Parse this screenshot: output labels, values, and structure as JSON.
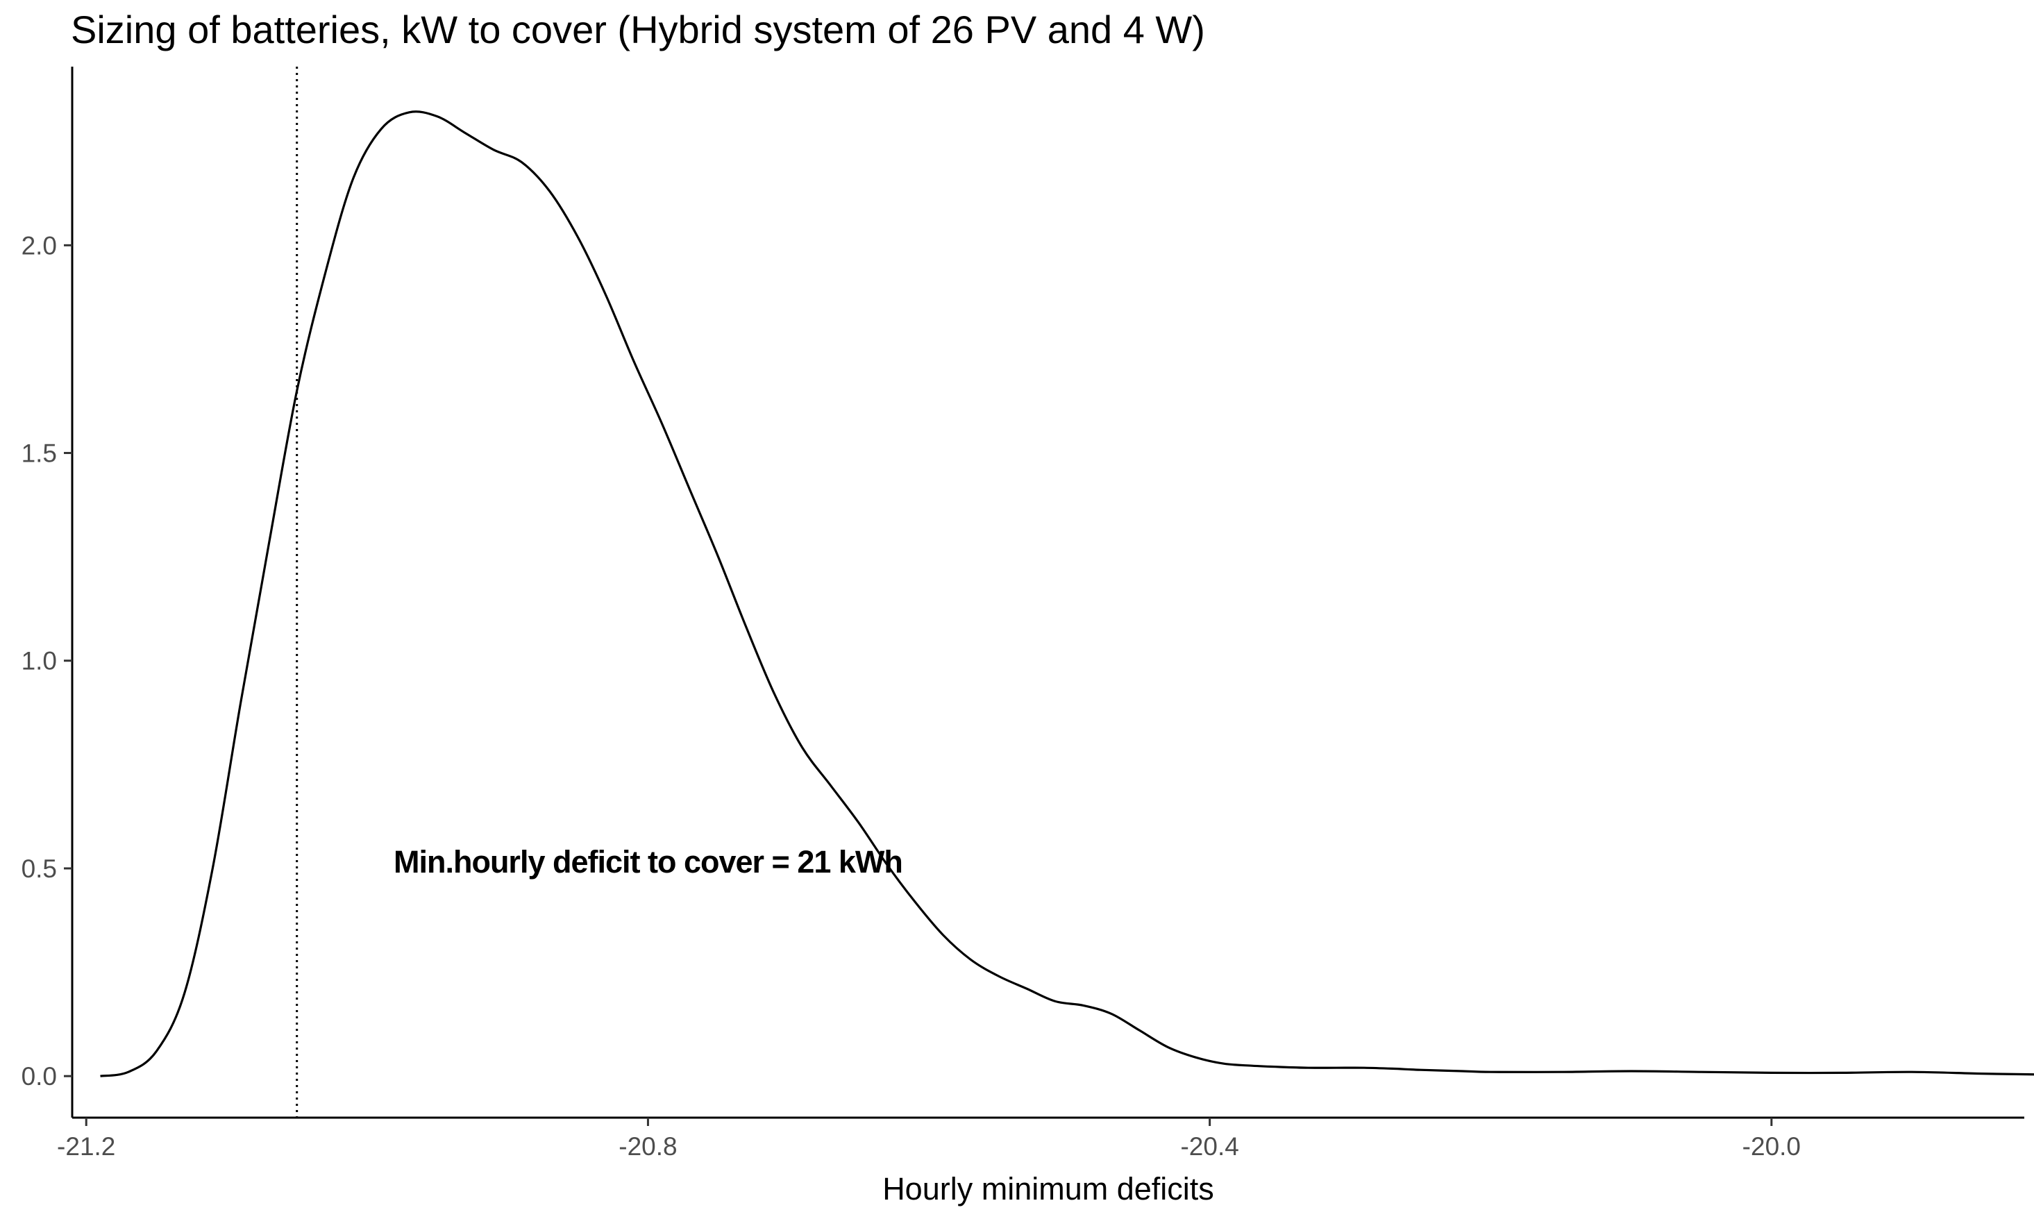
{
  "chart_data": {
    "type": "line",
    "title": "Sizing of batteries, kW to cover (Hybrid system of 26 PV and 4 W)",
    "xlabel": "Hourly minimum deficits",
    "ylabel": "",
    "xlim": [
      -21.21,
      -19.82
    ],
    "ylim": [
      -0.1,
      2.43
    ],
    "x_ticks": [
      -21.2,
      -20.8,
      -20.4,
      -20.0
    ],
    "x_tick_labels": [
      "-21.2",
      "-20.8",
      "-20.4",
      "-20.0"
    ],
    "y_ticks": [
      0.0,
      0.5,
      1.0,
      1.5,
      2.0
    ],
    "y_tick_labels": [
      "0.0",
      "0.5",
      "1.0",
      "1.5",
      "2.0"
    ],
    "grid": false,
    "legend": "none",
    "series": [
      {
        "x": [
          -21.19,
          -21.17,
          -21.15,
          -21.13,
          -21.11,
          -21.09,
          -21.07,
          -21.05,
          -21.03,
          -21.01,
          -20.99,
          -20.97,
          -20.95,
          -20.93,
          -20.91,
          -20.89,
          -20.87,
          -20.85,
          -20.83,
          -20.81,
          -20.79,
          -20.77,
          -20.75,
          -20.73,
          -20.71,
          -20.69,
          -20.67,
          -20.65,
          -20.63,
          -20.61,
          -20.59,
          -20.57,
          -20.55,
          -20.53,
          -20.51,
          -20.49,
          -20.47,
          -20.45,
          -20.43,
          -20.41,
          -20.39,
          -20.37,
          -20.35,
          -20.33,
          -20.31,
          -20.29,
          -20.27,
          -20.25,
          -20.22,
          -20.2,
          -20.15,
          -20.1,
          -20.05,
          -20.0,
          -19.95,
          -19.9,
          -19.85,
          -19.81
        ],
        "y": [
          0.0,
          0.01,
          0.06,
          0.2,
          0.5,
          0.9,
          1.28,
          1.65,
          1.93,
          2.16,
          2.28,
          2.32,
          2.31,
          2.27,
          2.23,
          2.2,
          2.13,
          2.02,
          1.88,
          1.72,
          1.57,
          1.41,
          1.25,
          1.08,
          0.92,
          0.79,
          0.7,
          0.61,
          0.51,
          0.42,
          0.34,
          0.28,
          0.24,
          0.21,
          0.18,
          0.17,
          0.15,
          0.11,
          0.07,
          0.045,
          0.03,
          0.025,
          0.022,
          0.02,
          0.02,
          0.02,
          0.018,
          0.015,
          0.012,
          0.01,
          0.01,
          0.012,
          0.01,
          0.008,
          0.008,
          0.01,
          0.006,
          0.004
        ],
        "color": "#000000"
      }
    ],
    "vline": {
      "x": -21.05,
      "style": "dotted",
      "color": "#000000"
    },
    "annotation": {
      "text": "Min.hourly deficit to cover = 21 kWh",
      "x": -20.8,
      "y": 0.49
    }
  }
}
